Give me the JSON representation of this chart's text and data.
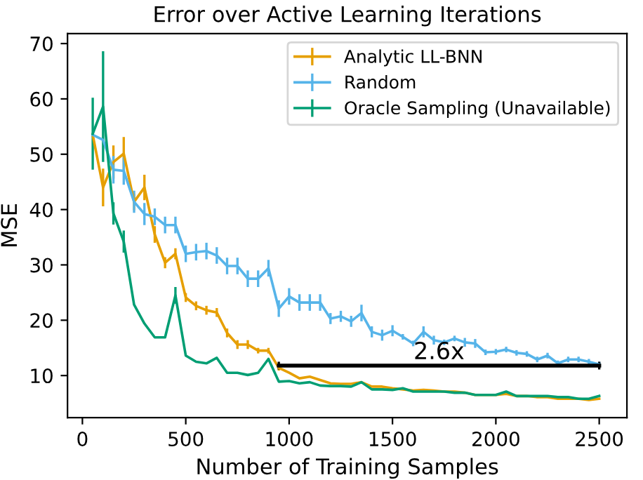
{
  "chart_data": {
    "type": "line",
    "title": "Error over Active Learning Iterations",
    "xlabel": "Number of Training Samples",
    "ylabel": "MSE",
    "xlim": [
      -72,
      2634
    ],
    "ylim": [
      2.4,
      71.8
    ],
    "xticks": [
      0,
      500,
      1000,
      1500,
      2000,
      2500
    ],
    "yticks": [
      10,
      20,
      30,
      40,
      50,
      60,
      70
    ],
    "grid": false,
    "legend": "top right",
    "marker": "none",
    "line_style": "solid",
    "x": [
      50,
      100,
      150,
      200,
      250,
      300,
      350,
      400,
      450,
      500,
      550,
      600,
      650,
      700,
      750,
      800,
      850,
      900,
      950,
      1000,
      1050,
      1100,
      1150,
      1200,
      1250,
      1300,
      1350,
      1400,
      1450,
      1500,
      1550,
      1600,
      1650,
      1700,
      1750,
      1800,
      1850,
      1900,
      1950,
      2000,
      2050,
      2100,
      2150,
      2200,
      2250,
      2300,
      2350,
      2400,
      2450,
      2500
    ],
    "series": [
      {
        "name": "Analytic LL-BNN",
        "color": "#e69f00",
        "values": [
          53.5,
          44,
          48.6,
          50.1,
          41.4,
          44,
          35.5,
          30.4,
          32,
          24.1,
          22.6,
          21.8,
          21.4,
          17.7,
          15.6,
          15.6,
          14.5,
          14.5,
          11.4,
          10.5,
          9.5,
          9.8,
          9.2,
          8.6,
          8.5,
          8.5,
          8.8,
          8,
          8,
          7.7,
          7.5,
          7.3,
          7.4,
          7.3,
          7.1,
          7.1,
          6.9,
          6.5,
          6.5,
          6.5,
          6.7,
          6.3,
          6.3,
          6.1,
          6.1,
          5.8,
          5.8,
          5.8,
          5.6,
          5.8
        ],
        "errors": [
          null,
          3.4,
          3,
          3,
          1.5,
          2.3,
          1.5,
          1,
          1,
          0.8,
          0.8,
          0.8,
          0.8,
          0.8,
          0.8,
          0.8,
          0.5,
          0.5,
          0.5,
          null,
          null,
          null,
          null,
          null,
          null,
          null,
          null,
          null,
          null,
          null,
          null,
          null,
          null,
          null,
          null,
          null,
          null,
          null,
          null,
          null,
          null,
          null,
          null,
          null,
          null,
          null,
          null,
          null,
          null,
          null
        ]
      },
      {
        "name": "Random",
        "color": "#56b4e9",
        "values": [
          53.5,
          52.6,
          47.2,
          47,
          41.4,
          39.2,
          38.7,
          37.2,
          37.2,
          32,
          32.3,
          32.5,
          31.7,
          29.8,
          29.8,
          27.5,
          27.5,
          29.4,
          22.1,
          24.3,
          23.2,
          23.2,
          23.2,
          20.3,
          20.7,
          19.8,
          21.3,
          17.9,
          17.3,
          18.1,
          17,
          15.8,
          17.9,
          16.4,
          16,
          16.7,
          16,
          15.8,
          14.2,
          14.3,
          14.7,
          14.1,
          13.9,
          12.9,
          13.6,
          12.2,
          12.9,
          12.9,
          12.5,
          12
        ],
        "errors": [
          null,
          null,
          2.5,
          2.5,
          2,
          2,
          1.5,
          1.5,
          1.5,
          1.5,
          1.5,
          1.5,
          1.5,
          1.5,
          1.5,
          1.5,
          1.5,
          1.5,
          1.5,
          1.5,
          1.5,
          1.5,
          1.5,
          1,
          1,
          1,
          1.5,
          1,
          1,
          1,
          0.5,
          0.5,
          1,
          0.8,
          0.5,
          0.5,
          0.8,
          0.8,
          0.5,
          0.5,
          0.5,
          0.5,
          0.5,
          0.5,
          0.5,
          0.5,
          0.5,
          0.5,
          0.5,
          0.5
        ]
      },
      {
        "name": "Oracle Sampling (Unavailable)",
        "color": "#009e73",
        "values": [
          53.7,
          58.6,
          39.3,
          34.2,
          22.8,
          19.4,
          16.9,
          16.9,
          24.5,
          13.6,
          12.5,
          12.2,
          13.2,
          10.5,
          10.5,
          10.1,
          10.5,
          13,
          8.9,
          9,
          8.6,
          8.8,
          8.2,
          8.1,
          8.1,
          8,
          8.8,
          7.5,
          7.5,
          7.4,
          7.7,
          7.1,
          7.1,
          7.1,
          7.1,
          6.9,
          6.9,
          6.5,
          6.5,
          6.5,
          7.1,
          6.3,
          6.3,
          6.3,
          6.3,
          6.1,
          6.1,
          5.8,
          5.8,
          6.3
        ],
        "errors": [
          6.5,
          10,
          2,
          2,
          null,
          null,
          null,
          null,
          1.5,
          null,
          null,
          null,
          null,
          null,
          null,
          null,
          null,
          null,
          null,
          null,
          null,
          null,
          null,
          null,
          null,
          null,
          null,
          null,
          null,
          null,
          null,
          null,
          null,
          null,
          null,
          null,
          null,
          null,
          null,
          null,
          null,
          null,
          null,
          null,
          null,
          null,
          null,
          null,
          null,
          null
        ]
      },
      {
        "color": "#000000",
        "x": [
          950,
          2500
        ],
        "values": [
          11.8,
          11.8
        ],
        "errors": [
          0.7,
          0.7
        ]
      }
    ],
    "annotations": [
      {
        "text": "2.6x",
        "x": 1725,
        "y": 11.8
      }
    ]
  }
}
